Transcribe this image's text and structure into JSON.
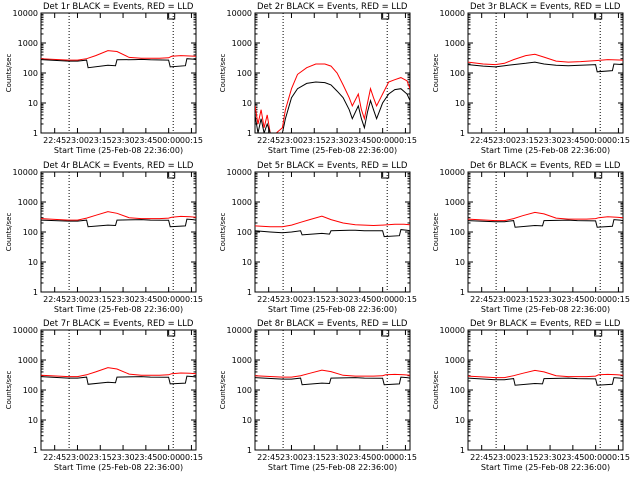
{
  "chart_data": {
    "type": "line",
    "y_scale": "log",
    "ylim": [
      1,
      10000
    ],
    "y_ticks": [
      "1",
      "10",
      "100",
      "1000",
      "10000"
    ],
    "x_ticks": [
      "22:45",
      "23:00",
      "23:15",
      "23:30",
      "23:45",
      "00:00",
      "00:15"
    ],
    "ylabel": "Counts/sec",
    "xlabel": "Start Time (25-Feb-08 22:36:00)",
    "colors": {
      "events": "#000000",
      "lld": "#ff0000",
      "marker": "#000000"
    },
    "x_minutes_ticks": [
      9,
      24,
      39,
      54,
      69,
      84,
      99
    ],
    "x_range_minutes": [
      0,
      102
    ],
    "vlines_minutes": [
      18.5,
      87
    ],
    "panels": [
      {
        "title": "Det 1r BLACK = Events, RED = LLD",
        "series": [
          {
            "x": [
              0,
              18,
              24,
              30,
              36,
              44,
              50,
              58,
              66,
              72,
              78,
              84,
              86,
              92,
              98,
              102
            ],
            "y": [
              300,
              270,
              270,
              300,
              380,
              560,
              520,
              330,
              310,
              310,
              310,
              320,
              360,
              380,
              370,
              360
            ]
          },
          {
            "x": [
              0,
              18,
              24,
              30,
              31,
              44,
              49,
              50,
              62,
              66,
              72,
              84,
              85,
              95,
              96,
              100,
              102
            ],
            "y": [
              280,
              250,
              250,
              270,
              150,
              180,
              175,
              275,
              280,
              285,
              275,
              270,
              160,
              175,
              300,
              290,
              280
            ]
          }
        ]
      },
      {
        "title": "Det 2r BLACK = Events, RED = LLD",
        "series": [
          {
            "x": [
              0,
              2,
              4,
              6,
              8,
              10,
              14,
              18,
              20,
              24,
              28,
              34,
              40,
              46,
              50,
              54,
              58,
              62,
              64,
              68,
              70,
              72,
              74,
              76,
              78,
              80,
              84,
              88,
              92,
              96,
              100,
              102
            ],
            "y": [
              8,
              2,
              6,
              1.5,
              4,
              1,
              1,
              1.5,
              6,
              30,
              90,
              150,
              200,
              200,
              170,
              100,
              40,
              15,
              8,
              20,
              6,
              3,
              10,
              30,
              15,
              8,
              20,
              50,
              60,
              70,
              55,
              30
            ]
          },
          {
            "x": [
              0,
              2,
              4,
              6,
              8,
              10,
              14,
              18,
              20,
              24,
              28,
              34,
              40,
              46,
              50,
              54,
              58,
              62,
              64,
              68,
              70,
              72,
              74,
              76,
              78,
              80,
              84,
              88,
              92,
              96,
              100,
              102
            ],
            "y": [
              4,
              1,
              3,
              1,
              2,
              1,
              1,
              1,
              3,
              15,
              30,
              45,
              50,
              48,
              40,
              25,
              15,
              6,
              3,
              8,
              3,
              1.5,
              5,
              12,
              6,
              3,
              10,
              20,
              28,
              30,
              20,
              12
            ]
          }
        ]
      },
      {
        "title": "Det 3r BLACK = Events, RED = LLD",
        "series": [
          {
            "x": [
              0,
              10,
              18,
              24,
              30,
              38,
              44,
              50,
              58,
              66,
              74,
              84,
              92,
              102
            ],
            "y": [
              230,
              200,
              190,
              210,
              280,
              380,
              420,
              340,
              250,
              230,
              240,
              260,
              280,
              270
            ]
          },
          {
            "x": [
              0,
              10,
              18,
              24,
              30,
              38,
              44,
              50,
              58,
              66,
              74,
              84,
              85,
              95,
              96,
              102
            ],
            "y": [
              190,
              170,
              160,
              175,
              190,
              210,
              230,
              200,
              180,
              175,
              180,
              190,
              110,
              120,
              200,
              190
            ]
          }
        ]
      },
      {
        "title": "Det 4r BLACK = Events, RED = LLD",
        "series": [
          {
            "x": [
              0,
              18,
              24,
              30,
              36,
              44,
              50,
              58,
              66,
              72,
              78,
              84,
              86,
              92,
              98,
              102
            ],
            "y": [
              280,
              250,
              250,
              290,
              360,
              480,
              420,
              300,
              280,
              280,
              280,
              290,
              310,
              330,
              320,
              310
            ]
          },
          {
            "x": [
              0,
              18,
              24,
              30,
              31,
              44,
              49,
              50,
              62,
              66,
              72,
              84,
              85,
              95,
              96,
              100,
              102
            ],
            "y": [
              250,
              230,
              230,
              250,
              150,
              170,
              165,
              250,
              255,
              260,
              250,
              245,
              150,
              160,
              270,
              260,
              250
            ]
          }
        ]
      },
      {
        "title": "Det 5r BLACK = Events, RED = LLD",
        "series": [
          {
            "x": [
              0,
              10,
              18,
              24,
              30,
              36,
              44,
              50,
              58,
              66,
              72,
              78,
              84,
              92,
              98,
              102
            ],
            "y": [
              160,
              150,
              150,
              170,
              210,
              260,
              340,
              260,
              200,
              175,
              170,
              165,
              170,
              180,
              180,
              175
            ]
          },
          {
            "x": [
              0,
              10,
              18,
              24,
              30,
              31,
              44,
              49,
              50,
              62,
              66,
              72,
              84,
              85,
              95,
              96,
              100,
              102
            ],
            "y": [
              110,
              100,
              95,
              100,
              110,
              80,
              90,
              85,
              110,
              115,
              115,
              110,
              110,
              70,
              75,
              120,
              115,
              110
            ]
          }
        ]
      },
      {
        "title": "Det 6r BLACK = Events, RED = LLD",
        "series": [
          {
            "x": [
              0,
              18,
              24,
              30,
              36,
              44,
              50,
              58,
              66,
              72,
              78,
              84,
              86,
              92,
              98,
              102
            ],
            "y": [
              270,
              240,
              240,
              280,
              350,
              450,
              400,
              290,
              270,
              270,
              270,
              280,
              300,
              320,
              310,
              300
            ]
          },
          {
            "x": [
              0,
              18,
              24,
              30,
              31,
              44,
              49,
              50,
              62,
              66,
              72,
              84,
              85,
              95,
              96,
              100,
              102
            ],
            "y": [
              240,
              220,
              220,
              240,
              145,
              165,
              160,
              240,
              245,
              250,
              240,
              235,
              145,
              155,
              260,
              250,
              240
            ]
          }
        ]
      },
      {
        "title": "Det 7r BLACK = Events, RED = LLD",
        "series": [
          {
            "x": [
              0,
              18,
              24,
              30,
              36,
              44,
              50,
              58,
              66,
              72,
              78,
              84,
              86,
              92,
              98,
              102
            ],
            "y": [
              310,
              280,
              280,
              320,
              400,
              560,
              500,
              340,
              310,
              310,
              310,
              320,
              350,
              370,
              360,
              350
            ]
          },
          {
            "x": [
              0,
              18,
              24,
              30,
              31,
              44,
              49,
              50,
              62,
              66,
              72,
              84,
              85,
              95,
              96,
              100,
              102
            ],
            "y": [
              280,
              250,
              250,
              270,
              155,
              180,
              175,
              270,
              275,
              280,
              270,
              265,
              160,
              170,
              290,
              280,
              270
            ]
          }
        ]
      },
      {
        "title": "Det 8r BLACK = Events, RED = LLD",
        "series": [
          {
            "x": [
              0,
              18,
              24,
              30,
              36,
              44,
              50,
              58,
              66,
              72,
              78,
              84,
              86,
              92,
              98,
              102
            ],
            "y": [
              300,
              270,
              270,
              300,
              360,
              460,
              410,
              310,
              290,
              290,
              290,
              300,
              320,
              330,
              320,
              310
            ]
          },
          {
            "x": [
              0,
              18,
              24,
              30,
              31,
              44,
              49,
              50,
              62,
              66,
              72,
              84,
              85,
              95,
              96,
              100,
              102
            ],
            "y": [
              260,
              230,
              230,
              250,
              150,
              170,
              165,
              250,
              255,
              260,
              250,
              245,
              150,
              160,
              270,
              260,
              250
            ]
          }
        ]
      },
      {
        "title": "Det 9r BLACK = Events, RED = LLD",
        "series": [
          {
            "x": [
              0,
              18,
              24,
              30,
              36,
              44,
              50,
              58,
              66,
              72,
              78,
              84,
              86,
              92,
              98,
              102
            ],
            "y": [
              290,
              260,
              260,
              300,
              360,
              450,
              400,
              300,
              280,
              280,
              280,
              290,
              320,
              330,
              320,
              310
            ]
          },
          {
            "x": [
              0,
              18,
              24,
              30,
              31,
              44,
              49,
              50,
              62,
              66,
              72,
              84,
              85,
              95,
              96,
              100,
              102
            ],
            "y": [
              250,
              220,
              220,
              240,
              145,
              165,
              160,
              240,
              245,
              250,
              240,
              235,
              145,
              155,
              260,
              250,
              240
            ]
          }
        ]
      }
    ]
  }
}
